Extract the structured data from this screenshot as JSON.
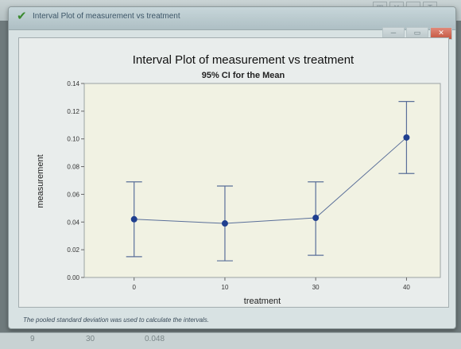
{
  "window": {
    "title": "Interval Plot of measurement vs treatment",
    "check_icon": "check-icon"
  },
  "chart_data": {
    "type": "interval",
    "title": "Interval Plot of measurement vs treatment",
    "subtitle": "95% CI for the Mean",
    "xlabel": "treatment",
    "ylabel": "measurement",
    "categories": [
      "0",
      "10",
      "30",
      "40"
    ],
    "means": [
      0.042,
      0.039,
      0.043,
      0.101
    ],
    "lower": [
      0.015,
      0.012,
      0.016,
      0.075
    ],
    "upper": [
      0.069,
      0.066,
      0.069,
      0.127
    ],
    "ylim": [
      0.0,
      0.14
    ],
    "yticks": [
      "0.00",
      "0.02",
      "0.04",
      "0.06",
      "0.08",
      "0.10",
      "0.12",
      "0.14"
    ],
    "colors": {
      "mean": "#1f3f8f",
      "interval": "#5a6f99",
      "line": "#5a6f99",
      "plot_bg": "#f1f2e3"
    }
  },
  "footnote": "The pooled standard deviation was used to calculate the intervals.",
  "worksheet_row": {
    "c1": "9",
    "c2": "30",
    "c3": "0.048"
  }
}
